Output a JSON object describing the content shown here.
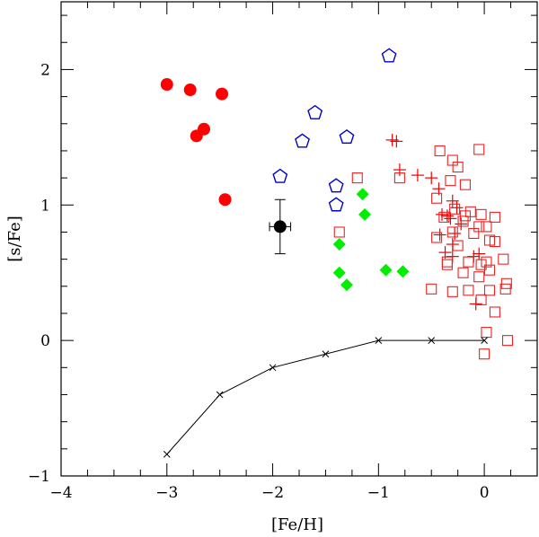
{
  "chart_data": {
    "type": "scatter",
    "xlabel": "[Fe/H]",
    "ylabel": "[s/Fe]",
    "xlim": [
      -4,
      0.5
    ],
    "ylim": [
      -1,
      2.5
    ],
    "x_ticks": [
      -4,
      -3,
      -2,
      -1,
      0
    ],
    "x_tick_labels": [
      "−4",
      "−3",
      "−2",
      "−1",
      "0"
    ],
    "y_ticks": [
      -1,
      0,
      1,
      2
    ],
    "y_tick_labels": [
      "−1",
      "0",
      "1",
      "2"
    ],
    "series": [
      {
        "name": "red-filled-circles",
        "marker": "circle-filled",
        "color": "#ff0000",
        "points": [
          [
            -3.0,
            1.89
          ],
          [
            -2.78,
            1.85
          ],
          [
            -2.48,
            1.82
          ],
          [
            -2.72,
            1.51
          ],
          [
            -2.65,
            1.56
          ],
          [
            -2.45,
            1.04
          ]
        ]
      },
      {
        "name": "blue-open-pentagons",
        "marker": "pentagon-open",
        "color": "#0000cc",
        "points": [
          [
            -0.9,
            2.1
          ],
          [
            -1.6,
            1.68
          ],
          [
            -1.3,
            1.5
          ],
          [
            -1.72,
            1.47
          ],
          [
            -1.93,
            1.21
          ],
          [
            -1.4,
            1.14
          ],
          [
            -1.4,
            1.0
          ]
        ]
      },
      {
        "name": "green-diamonds",
        "marker": "diamond-filled",
        "color": "#00ee00",
        "points": [
          [
            -1.15,
            1.08
          ],
          [
            -1.13,
            0.93
          ],
          [
            -1.37,
            0.71
          ],
          [
            -1.37,
            0.5
          ],
          [
            -1.3,
            0.41
          ],
          [
            -0.93,
            0.52
          ],
          [
            -0.77,
            0.51
          ]
        ]
      },
      {
        "name": "red-plus",
        "marker": "plus",
        "color": "#ee0000",
        "points": [
          [
            -0.83,
            1.47
          ],
          [
            -0.87,
            1.48
          ],
          [
            -0.8,
            1.26
          ],
          [
            -0.63,
            1.22
          ],
          [
            -0.5,
            1.2
          ],
          [
            -0.43,
            1.12
          ],
          [
            -0.4,
            0.93
          ],
          [
            -0.35,
            0.92
          ],
          [
            -0.3,
            1.03
          ],
          [
            -0.26,
            0.98
          ],
          [
            -0.32,
            0.9
          ],
          [
            -0.22,
            0.86
          ],
          [
            -0.42,
            0.78
          ],
          [
            -0.28,
            0.79
          ],
          [
            -0.3,
            0.71
          ],
          [
            -0.37,
            0.65
          ],
          [
            -0.3,
            0.62
          ],
          [
            -0.05,
            0.64
          ],
          [
            -0.1,
            0.62
          ],
          [
            -0.08,
            0.27
          ]
        ]
      },
      {
        "name": "red-open-squares",
        "marker": "square-open",
        "color": "#ee2222",
        "points": [
          [
            -1.2,
            1.2
          ],
          [
            -0.8,
            1.2
          ],
          [
            -0.42,
            1.4
          ],
          [
            -0.3,
            1.33
          ],
          [
            -0.25,
            1.28
          ],
          [
            -0.05,
            1.41
          ],
          [
            -0.32,
            1.18
          ],
          [
            -0.18,
            1.15
          ],
          [
            -0.45,
            1.05
          ],
          [
            -0.28,
            0.97
          ],
          [
            -0.18,
            0.92
          ],
          [
            -0.13,
            0.95
          ],
          [
            -0.03,
            0.93
          ],
          [
            0.1,
            0.91
          ],
          [
            -0.38,
            0.91
          ],
          [
            -0.2,
            0.88
          ],
          [
            0.02,
            0.84
          ],
          [
            -0.05,
            0.84
          ],
          [
            -1.37,
            0.8
          ],
          [
            -0.45,
            0.76
          ],
          [
            -0.3,
            0.8
          ],
          [
            -0.1,
            0.79
          ],
          [
            0.05,
            0.74
          ],
          [
            0.1,
            0.73
          ],
          [
            -0.25,
            0.7
          ],
          [
            0.18,
            0.6
          ],
          [
            -0.35,
            0.58
          ],
          [
            -0.15,
            0.58
          ],
          [
            -0.03,
            0.56
          ],
          [
            0.02,
            0.58
          ],
          [
            0.05,
            0.52
          ],
          [
            -0.2,
            0.5
          ],
          [
            -0.05,
            0.47
          ],
          [
            0.2,
            0.38
          ],
          [
            0.21,
            0.42
          ],
          [
            -0.3,
            0.36
          ],
          [
            -0.15,
            0.37
          ],
          [
            0.05,
            0.37
          ],
          [
            -0.03,
            0.3
          ],
          [
            0.1,
            0.21
          ],
          [
            -0.35,
            0.56
          ],
          [
            -0.5,
            0.38
          ],
          [
            0.02,
            0.06
          ],
          [
            0.22,
            0.0
          ],
          [
            0.0,
            -0.1
          ]
        ]
      },
      {
        "name": "model-curve",
        "marker": "cross-line",
        "color": "#000000",
        "points": [
          [
            -3.0,
            -0.84
          ],
          [
            -2.5,
            -0.4
          ],
          [
            -2.0,
            -0.2
          ],
          [
            -1.5,
            -0.1
          ],
          [
            -1.0,
            0.0
          ],
          [
            -0.5,
            0.0
          ],
          [
            0.0,
            0.0
          ]
        ]
      },
      {
        "name": "black-point-with-errorbars",
        "marker": "circle-filled",
        "color": "#000000",
        "points": [
          [
            -1.93,
            0.84
          ]
        ],
        "x_error": 0.1,
        "y_error": 0.2
      }
    ]
  }
}
